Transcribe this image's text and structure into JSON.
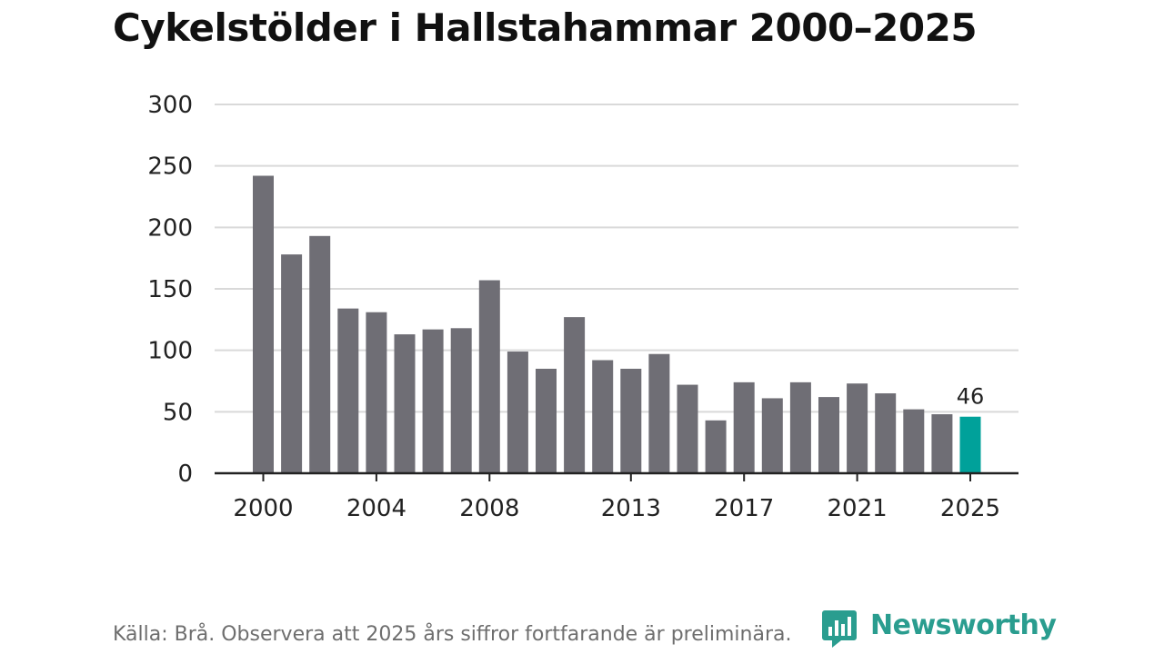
{
  "title": "Cykelstölder i Hallstahammar 2000–2025",
  "source": "Källa: Brå. Observera att 2025 års siffror fortfarande är preliminära.",
  "brand": {
    "name": "Newsworthy",
    "icon": "bar-chart-logo-icon"
  },
  "colors": {
    "bar": "#6f6e75",
    "highlight": "#00a19a",
    "grid": "#d9d9d9",
    "axis": "#222222",
    "text": "#222222",
    "brand": "#2a9d8f"
  },
  "chart_data": {
    "type": "bar",
    "title": "Cykelstölder i Hallstahammar 2000–2025",
    "xlabel": "",
    "ylabel": "",
    "ylim": [
      0,
      300
    ],
    "yticks": [
      0,
      50,
      100,
      150,
      200,
      250,
      300
    ],
    "grid": true,
    "categories": [
      2000,
      2001,
      2002,
      2003,
      2004,
      2005,
      2006,
      2007,
      2008,
      2009,
      2010,
      2011,
      2012,
      2013,
      2014,
      2015,
      2016,
      2017,
      2018,
      2019,
      2020,
      2021,
      2022,
      2023,
      2024,
      2025
    ],
    "values": [
      242,
      178,
      193,
      134,
      131,
      113,
      117,
      118,
      157,
      99,
      85,
      127,
      92,
      85,
      97,
      72,
      43,
      74,
      61,
      74,
      62,
      73,
      65,
      52,
      48,
      46
    ],
    "xtick_labels": [
      "2000",
      "2004",
      "2008",
      "2013",
      "2017",
      "2021",
      "2025"
    ],
    "highlight": {
      "category": 2025,
      "label": "46"
    }
  }
}
